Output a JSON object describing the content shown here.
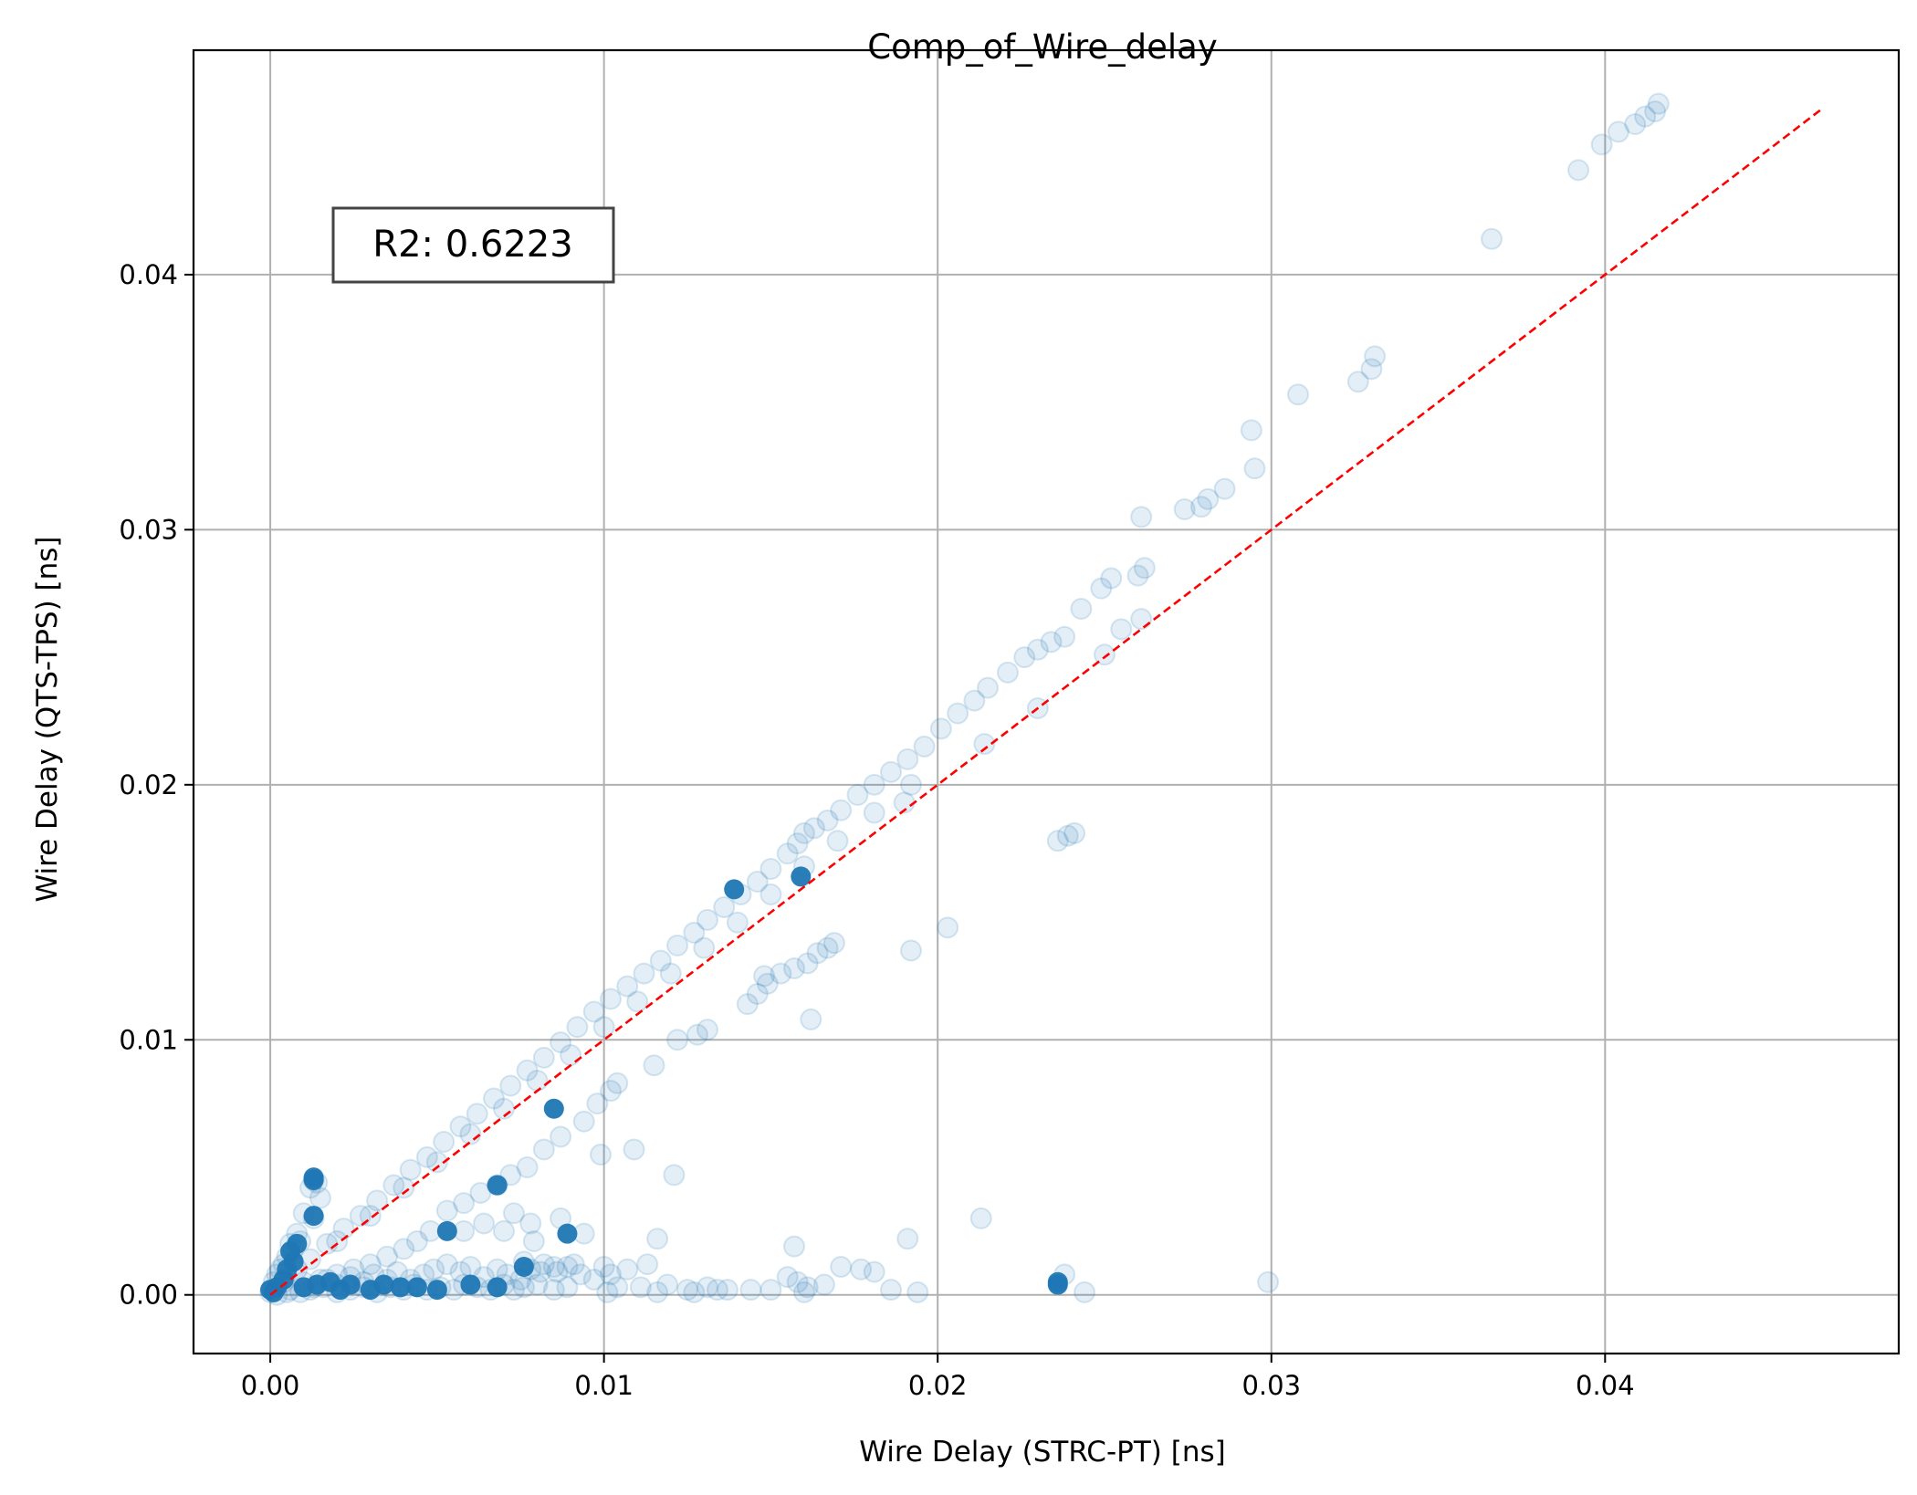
{
  "chart_data": {
    "type": "scatter",
    "title": "Comp_of_Wire_delay",
    "xlabel": "Wire Delay (STRC-PT) [ns]",
    "ylabel": "Wire Delay (QTS-TPS) [ns]",
    "xlim": [
      -0.0023,
      0.0488
    ],
    "ylim": [
      -0.0023,
      0.0488
    ],
    "xticks": [
      0.0,
      0.01,
      0.02,
      0.03,
      0.04
    ],
    "yticks": [
      0.0,
      0.01,
      0.02,
      0.03,
      0.04
    ],
    "xtick_labels": [
      "0.00",
      "0.01",
      "0.02",
      "0.03",
      "0.04"
    ],
    "ytick_labels": [
      "0.00",
      "0.01",
      "0.02",
      "0.03",
      "0.04"
    ],
    "grid": true,
    "annotation": "R2: 0.6223",
    "reference_line": {
      "x": [
        0.0,
        0.0465
      ],
      "y": [
        0.0,
        0.0465
      ],
      "style": "dashed",
      "color": "#ff0000"
    },
    "colors": {
      "points": "#1f77b4",
      "reference": "#ff0000"
    },
    "point_alpha": 0.12,
    "series": [
      {
        "points": [
          [
            0.0416,
            0.0467
          ],
          [
            0.0415,
            0.0464
          ],
          [
            0.0412,
            0.0462
          ],
          [
            0.0409,
            0.0459
          ],
          [
            0.0404,
            0.0456
          ],
          [
            0.0399,
            0.0451
          ],
          [
            0.0392,
            0.0441
          ],
          [
            0.0366,
            0.0414
          ],
          [
            0.0331,
            0.0368
          ],
          [
            0.033,
            0.0363
          ],
          [
            0.0326,
            0.0358
          ],
          [
            0.0308,
            0.0353
          ],
          [
            0.0294,
            0.0339
          ],
          [
            0.0295,
            0.0324
          ],
          [
            0.0286,
            0.0316
          ],
          [
            0.0281,
            0.0312
          ],
          [
            0.0279,
            0.0309
          ],
          [
            0.0274,
            0.0308
          ],
          [
            0.0261,
            0.0305
          ],
          [
            0.0262,
            0.0285
          ],
          [
            0.026,
            0.0282
          ],
          [
            0.0252,
            0.0281
          ],
          [
            0.0249,
            0.0277
          ],
          [
            0.0261,
            0.0265
          ],
          [
            0.0255,
            0.0261
          ],
          [
            0.025,
            0.0251
          ],
          [
            0.0243,
            0.0269
          ],
          [
            0.0238,
            0.0258
          ],
          [
            0.0234,
            0.0256
          ],
          [
            0.023,
            0.0253
          ],
          [
            0.0226,
            0.025
          ],
          [
            0.0221,
            0.0244
          ],
          [
            0.0215,
            0.0238
          ],
          [
            0.0211,
            0.0233
          ],
          [
            0.0206,
            0.0228
          ],
          [
            0.0201,
            0.0222
          ],
          [
            0.0196,
            0.0215
          ],
          [
            0.0191,
            0.021
          ],
          [
            0.0186,
            0.0205
          ],
          [
            0.0181,
            0.02
          ],
          [
            0.0176,
            0.0196
          ],
          [
            0.0171,
            0.019
          ],
          [
            0.0167,
            0.0186
          ],
          [
            0.0163,
            0.0183
          ],
          [
            0.016,
            0.0181
          ],
          [
            0.0158,
            0.0177
          ],
          [
            0.0155,
            0.0173
          ],
          [
            0.015,
            0.0167
          ],
          [
            0.0146,
            0.0162
          ],
          [
            0.0141,
            0.0157
          ],
          [
            0.0136,
            0.0152
          ],
          [
            0.0131,
            0.0147
          ],
          [
            0.0127,
            0.0142
          ],
          [
            0.0122,
            0.0137
          ],
          [
            0.0117,
            0.0131
          ],
          [
            0.0112,
            0.0126
          ],
          [
            0.0107,
            0.0121
          ],
          [
            0.0102,
            0.0116
          ],
          [
            0.0097,
            0.0111
          ],
          [
            0.0092,
            0.0105
          ],
          [
            0.0087,
            0.0099
          ],
          [
            0.0082,
            0.0093
          ],
          [
            0.0077,
            0.0088
          ],
          [
            0.0072,
            0.0082
          ],
          [
            0.0067,
            0.0077
          ],
          [
            0.0062,
            0.0071
          ],
          [
            0.0057,
            0.0066
          ],
          [
            0.0052,
            0.006
          ],
          [
            0.0047,
            0.0054
          ],
          [
            0.0042,
            0.0049
          ],
          [
            0.0037,
            0.0043
          ],
          [
            0.0032,
            0.0037
          ],
          [
            0.0027,
            0.0031
          ],
          [
            0.0022,
            0.0026
          ],
          [
            0.0017,
            0.002
          ],
          [
            0.0012,
            0.0014
          ],
          [
            0.0008,
            0.001
          ],
          [
            0.0004,
            0.0005
          ],
          [
            0.023,
            0.023
          ],
          [
            0.0214,
            0.0216
          ],
          [
            0.0192,
            0.02
          ],
          [
            0.019,
            0.0193
          ],
          [
            0.0181,
            0.0189
          ],
          [
            0.017,
            0.0178
          ],
          [
            0.016,
            0.0168
          ],
          [
            0.015,
            0.0157
          ],
          [
            0.014,
            0.0146
          ],
          [
            0.013,
            0.0136
          ],
          [
            0.012,
            0.0126
          ],
          [
            0.011,
            0.0115
          ],
          [
            0.01,
            0.0105
          ],
          [
            0.009,
            0.0094
          ],
          [
            0.008,
            0.0084
          ],
          [
            0.007,
            0.0073
          ],
          [
            0.006,
            0.0063
          ],
          [
            0.005,
            0.0052
          ],
          [
            0.004,
            0.0042
          ],
          [
            0.003,
            0.0031
          ],
          [
            0.002,
            0.0021
          ],
          [
            0.0241,
            0.0181
          ],
          [
            0.0239,
            0.018
          ],
          [
            0.0236,
            0.0178
          ],
          [
            0.0169,
            0.0138
          ],
          [
            0.0167,
            0.0136
          ],
          [
            0.0164,
            0.0134
          ],
          [
            0.0161,
            0.013
          ],
          [
            0.0157,
            0.0128
          ],
          [
            0.0153,
            0.0126
          ],
          [
            0.0149,
            0.0122
          ],
          [
            0.0146,
            0.0118
          ],
          [
            0.0143,
            0.0114
          ],
          [
            0.0162,
            0.0108
          ],
          [
            0.0131,
            0.0104
          ],
          [
            0.0128,
            0.0102
          ],
          [
            0.0122,
            0.01
          ],
          [
            0.0203,
            0.0144
          ],
          [
            0.0192,
            0.0135
          ],
          [
            0.0148,
            0.0125
          ],
          [
            0.0115,
            0.009
          ],
          [
            0.0104,
            0.0083
          ],
          [
            0.0102,
            0.008
          ],
          [
            0.0098,
            0.0075
          ],
          [
            0.0094,
            0.0068
          ],
          [
            0.0087,
            0.0062
          ],
          [
            0.0082,
            0.0057
          ],
          [
            0.0109,
            0.0057
          ],
          [
            0.0099,
            0.0055
          ],
          [
            0.0121,
            0.0047
          ],
          [
            0.0077,
            0.005
          ],
          [
            0.0072,
            0.0047
          ],
          [
            0.0068,
            0.0043
          ],
          [
            0.0063,
            0.004
          ],
          [
            0.0058,
            0.0036
          ],
          [
            0.0053,
            0.0033
          ],
          [
            0.0073,
            0.0032
          ],
          [
            0.0078,
            0.0028
          ],
          [
            0.0087,
            0.003
          ],
          [
            0.0064,
            0.0028
          ],
          [
            0.0058,
            0.0025
          ],
          [
            0.0048,
            0.0025
          ],
          [
            0.0044,
            0.0021
          ],
          [
            0.004,
            0.0018
          ],
          [
            0.0035,
            0.0015
          ],
          [
            0.003,
            0.0012
          ],
          [
            0.0025,
            0.001
          ],
          [
            0.002,
            0.0008
          ],
          [
            0.0015,
            0.0006
          ],
          [
            0.0213,
            0.003
          ],
          [
            0.0191,
            0.0022
          ],
          [
            0.0116,
            0.0022
          ],
          [
            0.0157,
            0.0019
          ],
          [
            0.0094,
            0.0024
          ],
          [
            0.0079,
            0.0021
          ],
          [
            0.007,
            0.0025
          ],
          [
            0.0299,
            0.0005
          ],
          [
            0.0244,
            0.0001
          ],
          [
            0.0238,
            0.0008
          ],
          [
            0.0194,
            0.0001
          ],
          [
            0.0186,
            0.0002
          ],
          [
            0.0181,
            0.0009
          ],
          [
            0.0177,
            0.001
          ],
          [
            0.0171,
            0.0011
          ],
          [
            0.0166,
            0.0004
          ],
          [
            0.0161,
            0.0003
          ],
          [
            0.0158,
            0.0005
          ],
          [
            0.0155,
            0.0007
          ],
          [
            0.015,
            0.0002
          ],
          [
            0.0144,
            0.0002
          ],
          [
            0.0134,
            0.0002
          ],
          [
            0.0131,
            0.0003
          ],
          [
            0.0125,
            0.0002
          ],
          [
            0.0119,
            0.0004
          ],
          [
            0.0116,
            0.0001
          ],
          [
            0.0111,
            0.0003
          ],
          [
            0.0104,
            0.0003
          ],
          [
            0.0101,
            0.0001
          ],
          [
            0.0097,
            0.0006
          ],
          [
            0.0093,
            0.0008
          ],
          [
            0.0089,
            0.0011
          ],
          [
            0.0086,
            0.0009
          ],
          [
            0.0082,
            0.0012
          ],
          [
            0.0078,
            0.001
          ],
          [
            0.0075,
            0.0006
          ],
          [
            0.0071,
            0.0008
          ],
          [
            0.0068,
            0.001
          ],
          [
            0.0064,
            0.0007
          ],
          [
            0.006,
            0.0011
          ],
          [
            0.0057,
            0.0009
          ],
          [
            0.0053,
            0.0012
          ],
          [
            0.0049,
            0.001
          ],
          [
            0.0046,
            0.0008
          ],
          [
            0.0042,
            0.0006
          ],
          [
            0.0038,
            0.0009
          ],
          [
            0.0035,
            0.0006
          ],
          [
            0.0031,
            0.0008
          ],
          [
            0.0028,
            0.0005
          ],
          [
            0.0024,
            0.0007
          ],
          [
            0.002,
            0.0004
          ],
          [
            0.0017,
            0.0006
          ],
          [
            0.0013,
            0.0003
          ],
          [
            0.001,
            0.0005
          ],
          [
            0.0006,
            0.0002
          ],
          [
            0.0113,
            0.0012
          ],
          [
            0.0107,
            0.001
          ],
          [
            0.0102,
            0.0008
          ],
          [
            0.01,
            0.0011
          ],
          [
            0.0091,
            0.0012
          ],
          [
            0.0085,
            0.0011
          ],
          [
            0.0081,
            0.0009
          ],
          [
            0.0076,
            0.0013
          ],
          [
            0.016,
            0.0001
          ],
          [
            0.0137,
            0.0002
          ],
          [
            0.0127,
            0.0001
          ],
          [
            0.0089,
            0.0003
          ],
          [
            0.0085,
            0.0002
          ],
          [
            0.008,
            0.0004
          ],
          [
            0.0076,
            0.0003
          ],
          [
            0.0073,
            0.0002
          ],
          [
            0.007,
            0.0004
          ],
          [
            0.0066,
            0.0002
          ],
          [
            0.0062,
            0.0003
          ],
          [
            0.0058,
            0.0004
          ],
          [
            0.0055,
            0.0002
          ],
          [
            0.0051,
            0.0003
          ],
          [
            0.0047,
            0.0002
          ],
          [
            0.0043,
            0.0004
          ],
          [
            0.004,
            0.0002
          ],
          [
            0.0036,
            0.0003
          ],
          [
            0.0032,
            0.0001
          ],
          [
            0.0028,
            0.0003
          ],
          [
            0.0024,
            0.0002
          ],
          [
            0.002,
            0.0001
          ],
          [
            0.0016,
            0.0003
          ],
          [
            0.0012,
            0.0002
          ],
          [
            0.0009,
            0.0001
          ],
          [
            0.0005,
            0.0001
          ],
          [
            0.0002,
            0.0
          ],
          [
            0.0,
            0.0001
          ],
          [
            0.0013,
            0.0045
          ],
          [
            0.0014,
            0.0044
          ],
          [
            0.0012,
            0.0042
          ],
          [
            0.0015,
            0.0038
          ],
          [
            0.001,
            0.0032
          ],
          [
            0.0013,
            0.003
          ],
          [
            0.0008,
            0.0024
          ],
          [
            0.0009,
            0.0021
          ],
          [
            0.0006,
            0.002
          ],
          [
            0.0007,
            0.0018
          ],
          [
            0.0005,
            0.0015
          ],
          [
            0.0004,
            0.0012
          ],
          [
            0.0003,
            0.001
          ],
          [
            0.0002,
            0.0008
          ],
          [
            0.0001,
            0.0005
          ]
        ]
      }
    ],
    "highlight_points": [
      [
        0.0139,
        0.0159
      ],
      [
        0.0159,
        0.0164
      ],
      [
        0.0085,
        0.0073
      ],
      [
        0.0068,
        0.0043
      ],
      [
        0.0013,
        0.0046
      ],
      [
        0.0013,
        0.0045
      ],
      [
        0.0013,
        0.0031
      ],
      [
        0.0089,
        0.0024
      ],
      [
        0.0053,
        0.0025
      ],
      [
        0.0076,
        0.0011
      ],
      [
        0.0236,
        0.0005
      ],
      [
        0.0236,
        0.0004
      ],
      [
        0.0068,
        0.0003
      ],
      [
        0.005,
        0.0002
      ],
      [
        0.0039,
        0.0003
      ],
      [
        0.003,
        0.0002
      ],
      [
        0.0021,
        0.0002
      ],
      [
        0.0014,
        0.0004
      ],
      [
        0.0008,
        0.002
      ],
      [
        0.0006,
        0.0017
      ],
      [
        0.0007,
        0.0013
      ],
      [
        0.0005,
        0.001
      ],
      [
        0.0004,
        0.0006
      ],
      [
        0.0002,
        0.0003
      ],
      [
        0.0001,
        0.0001
      ],
      [
        0.0,
        0.0002
      ],
      [
        0.001,
        0.0003
      ],
      [
        0.0018,
        0.0005
      ],
      [
        0.0024,
        0.0004
      ],
      [
        0.0034,
        0.0004
      ],
      [
        0.0044,
        0.0003
      ],
      [
        0.006,
        0.0004
      ]
    ]
  }
}
